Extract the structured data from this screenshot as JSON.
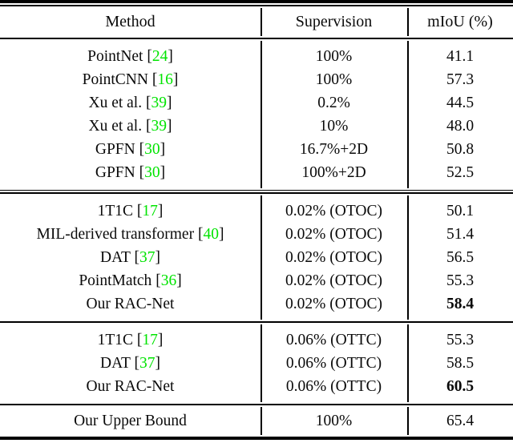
{
  "table": {
    "columns": [
      {
        "label": "Method"
      },
      {
        "label": "Supervision"
      },
      {
        "label": "mIoU (%)"
      }
    ],
    "citation_color": "#00e400",
    "sections": [
      {
        "rule_after": "double",
        "rows": [
          {
            "method": "PointNet",
            "cite": "24",
            "supervision": "100%",
            "miou": "41.1",
            "bold": false
          },
          {
            "method": "PointCNN",
            "cite": "16",
            "supervision": "100%",
            "miou": "57.3",
            "bold": false
          },
          {
            "method": "Xu et al.",
            "cite": "39",
            "supervision": "0.2%",
            "miou": "44.5",
            "bold": false
          },
          {
            "method": "Xu et al.",
            "cite": "39",
            "supervision": "10%",
            "miou": "48.0",
            "bold": false
          },
          {
            "method": "GPFN",
            "cite": "30",
            "supervision": "16.7%+2D",
            "miou": "50.8",
            "bold": false
          },
          {
            "method": "GPFN",
            "cite": "30",
            "supervision": "100%+2D",
            "miou": "52.5",
            "bold": false
          }
        ]
      },
      {
        "rule_after": "single",
        "rows": [
          {
            "method": "1T1C",
            "cite": "17",
            "supervision": "0.02% (OTOC)",
            "miou": "50.1",
            "bold": false
          },
          {
            "method": "MIL-derived transformer",
            "cite": "40",
            "supervision": "0.02% (OTOC)",
            "miou": "51.4",
            "bold": false
          },
          {
            "method": "DAT",
            "cite": "37",
            "supervision": "0.02% (OTOC)",
            "miou": "56.5",
            "bold": false
          },
          {
            "method": "PointMatch",
            "cite": "36",
            "supervision": "0.02% (OTOC)",
            "miou": "55.3",
            "bold": false
          },
          {
            "method": "Our RAC-Net",
            "cite": null,
            "supervision": "0.02% (OTOC)",
            "miou": "58.4",
            "bold": true
          }
        ]
      },
      {
        "rule_after": "single",
        "rows": [
          {
            "method": "1T1C",
            "cite": "17",
            "supervision": "0.06% (OTTC)",
            "miou": "55.3",
            "bold": false
          },
          {
            "method": "DAT",
            "cite": "37",
            "supervision": "0.06% (OTTC)",
            "miou": "58.5",
            "bold": false
          },
          {
            "method": "Our RAC-Net",
            "cite": null,
            "supervision": "0.06% (OTTC)",
            "miou": "60.5",
            "bold": true
          }
        ]
      },
      {
        "rule_after": "none",
        "rows": [
          {
            "method": "Our Upper Bound",
            "cite": null,
            "supervision": "100%",
            "miou": "65.4",
            "bold": false
          }
        ]
      }
    ]
  }
}
